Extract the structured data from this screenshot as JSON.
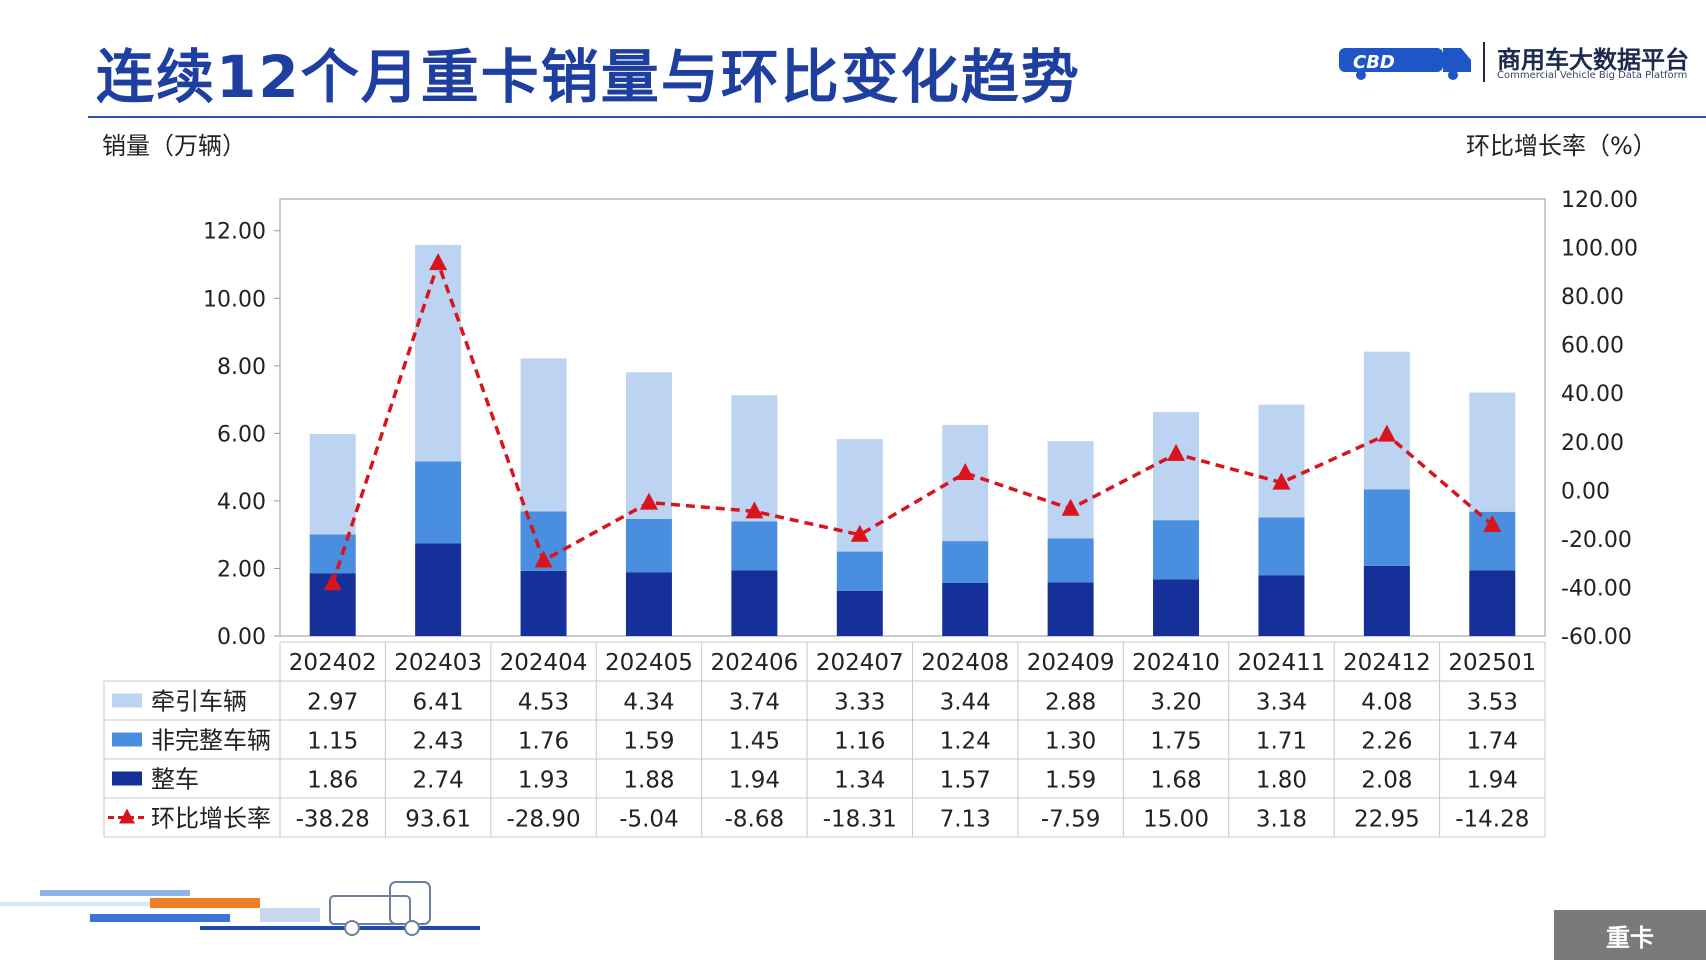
{
  "title": "连续12个月重卡销量与环比变化趋势",
  "logo": {
    "name_cn": "商用车大数据平台",
    "name_en": "Commercial Vehicle Big Data Platform"
  },
  "left_axis_unit": "销量（万辆）",
  "right_axis_unit": "环比增长率（%）",
  "corner_tag": "重卡",
  "colors": {
    "tractor": "#bcd3f2",
    "incomplete": "#4a8ee0",
    "complete": "#16309a",
    "growth": "#d8141c",
    "title": "#1e3fa0"
  },
  "chart_data": {
    "type": "bar",
    "stacked": true,
    "categories": [
      "202402",
      "202403",
      "202404",
      "202405",
      "202406",
      "202407",
      "202408",
      "202409",
      "202410",
      "202411",
      "202412",
      "202501"
    ],
    "series": [
      {
        "name": "牵引车辆",
        "axis": "left",
        "values": [
          2.97,
          6.41,
          4.53,
          4.34,
          3.74,
          3.33,
          3.44,
          2.88,
          3.2,
          3.34,
          4.08,
          3.53
        ]
      },
      {
        "name": "非完整车辆",
        "axis": "left",
        "values": [
          1.15,
          2.43,
          1.76,
          1.59,
          1.45,
          1.16,
          1.24,
          1.3,
          1.75,
          1.71,
          2.26,
          1.74
        ]
      },
      {
        "name": "整车",
        "axis": "left",
        "values": [
          1.86,
          2.74,
          1.93,
          1.88,
          1.94,
          1.34,
          1.57,
          1.59,
          1.68,
          1.8,
          2.08,
          1.94
        ]
      },
      {
        "name": "环比增长率",
        "axis": "right",
        "type": "line",
        "values": [
          -38.28,
          93.61,
          -28.9,
          -5.04,
          -8.68,
          -18.31,
          7.13,
          -7.59,
          15.0,
          3.18,
          22.95,
          -14.28
        ]
      }
    ],
    "table_values": {
      "牵引车辆": [
        "2.97",
        "6.41",
        "4.53",
        "4.34",
        "3.74",
        "3.33",
        "3.44",
        "2.88",
        "3.20",
        "3.34",
        "4.08",
        "3.53"
      ],
      "非完整车辆": [
        "1.15",
        "2.43",
        "1.76",
        "1.59",
        "1.45",
        "1.16",
        "1.24",
        "1.30",
        "1.75",
        "1.71",
        "2.26",
        "1.74"
      ],
      "整车": [
        "1.86",
        "2.74",
        "1.93",
        "1.88",
        "1.94",
        "1.34",
        "1.57",
        "1.59",
        "1.68",
        "1.80",
        "2.08",
        "1.94"
      ],
      "环比增长率": [
        "-38.28",
        "93.61",
        "-28.90",
        "-5.04",
        "-8.68",
        "-18.31",
        "7.13",
        "-7.59",
        "15.00",
        "3.18",
        "22.95",
        "-14.28"
      ]
    },
    "ylim_left": [
      0,
      12.94
    ],
    "yticks_left": [
      "0.00",
      "2.00",
      "4.00",
      "6.00",
      "8.00",
      "10.00",
      "12.00"
    ],
    "ylim_right": [
      -60,
      120
    ],
    "yticks_right": [
      "-60.00",
      "-40.00",
      "-20.00",
      "0.00",
      "20.00",
      "40.00",
      "60.00",
      "80.00",
      "100.00",
      "120.00"
    ],
    "grid": false,
    "legend": "data-table"
  }
}
